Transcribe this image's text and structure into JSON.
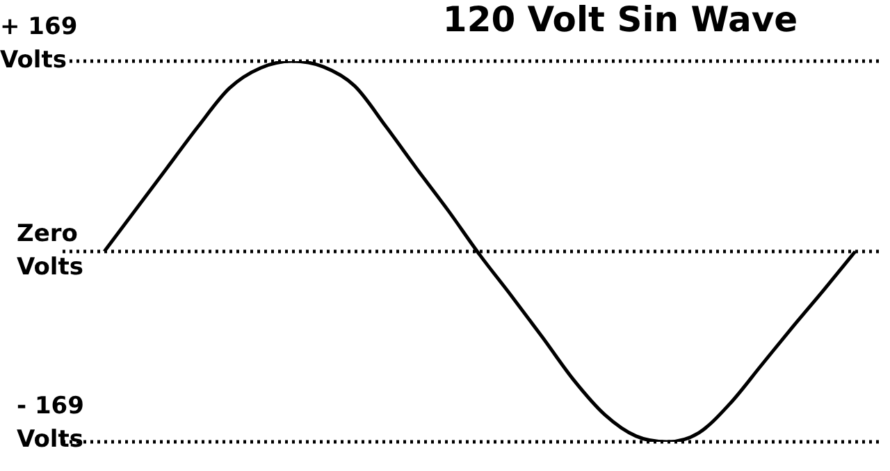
{
  "chart_data": {
    "type": "line",
    "title": "120 Volt Sin Wave",
    "categories": [
      null,
      null,
      null,
      null,
      null,
      null,
      null,
      null,
      null,
      null,
      null,
      null,
      null,
      null,
      null,
      null,
      null,
      null,
      null,
      null,
      null,
      null,
      null,
      null,
      null
    ],
    "series": [
      {
        "color": "#000000",
        "values": [
          0,
          37,
          74,
          111,
          145,
          163,
          169,
          164,
          147,
          111,
          73,
          36,
          -3,
          -39,
          -76,
          -114,
          -145,
          -164,
          -169,
          -161,
          -135,
          -101,
          -67,
          -34,
          0
        ]
      }
    ],
    "ylim": [
      -169,
      169
    ],
    "tick_labels": false,
    "marker": "none",
    "line_style": "solid",
    "ref_lines": [
      {
        "axis": "y",
        "value": 169,
        "label": "+ 169 Volts",
        "color": "#000000",
        "line_style": "dotted"
      },
      {
        "axis": "y",
        "value": 0,
        "label": "Zero Volts",
        "color": "#000000",
        "line_style": "dotted"
      },
      {
        "axis": "y",
        "value": -169,
        "label": "- 169 Volts",
        "color": "#000000",
        "line_style": "dotted"
      }
    ]
  }
}
